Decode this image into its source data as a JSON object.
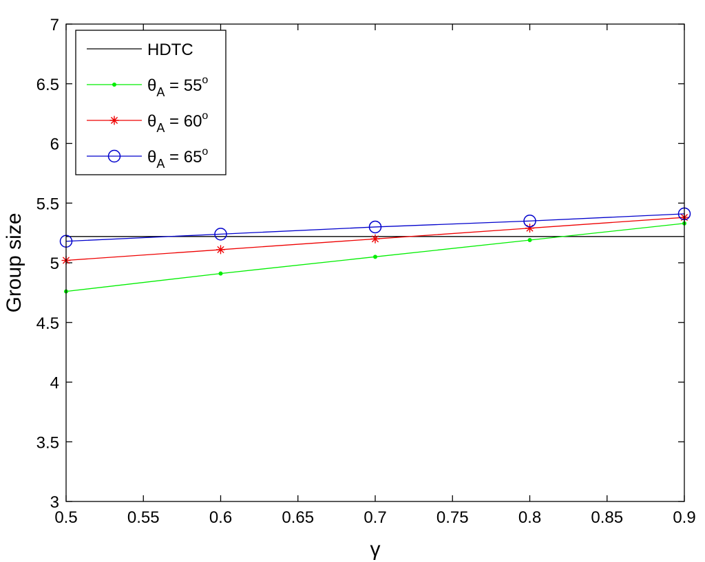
{
  "chart_data": {
    "type": "line",
    "title": "",
    "xlabel": "γ",
    "ylabel": "Group size",
    "xlim": [
      0.5,
      0.9
    ],
    "ylim": [
      3,
      7
    ],
    "x_ticks": [
      "0.5",
      "0.55",
      "0.6",
      "0.65",
      "0.7",
      "0.75",
      "0.8",
      "0.85",
      "0.9"
    ],
    "y_ticks": [
      "3",
      "3.5",
      "4",
      "4.5",
      "5",
      "5.5",
      "6",
      "6.5",
      "7"
    ],
    "grid": false,
    "legend_position": "top-left",
    "x": [
      0.5,
      0.6,
      0.7,
      0.8,
      0.9
    ],
    "series": [
      {
        "name": "HDTC",
        "legend_theta": "",
        "legend_sub": "",
        "legend_eq": "HDTC",
        "legend_sup": "",
        "color": "#000000",
        "marker": "none",
        "constant": true,
        "values": [
          5.22,
          5.22,
          5.22,
          5.22,
          5.22
        ]
      },
      {
        "name": "θA = 55o",
        "legend_theta": "θ",
        "legend_sub": "A",
        "legend_eq": " = 55",
        "legend_sup": "o",
        "color": "#00ee00",
        "marker": "dot",
        "values": [
          4.76,
          4.91,
          5.05,
          5.19,
          5.33
        ]
      },
      {
        "name": "θA = 60o",
        "legend_theta": "θ",
        "legend_sub": "A",
        "legend_eq": " = 60",
        "legend_sup": "o",
        "color": "#ee0000",
        "marker": "star",
        "values": [
          5.02,
          5.11,
          5.2,
          5.29,
          5.38
        ]
      },
      {
        "name": "θA = 65o",
        "legend_theta": "θ",
        "legend_sub": "A",
        "legend_eq": " = 65",
        "legend_sup": "o",
        "color": "#0000cc",
        "marker": "circle",
        "values": [
          5.18,
          5.24,
          5.3,
          5.35,
          5.41
        ]
      }
    ]
  }
}
